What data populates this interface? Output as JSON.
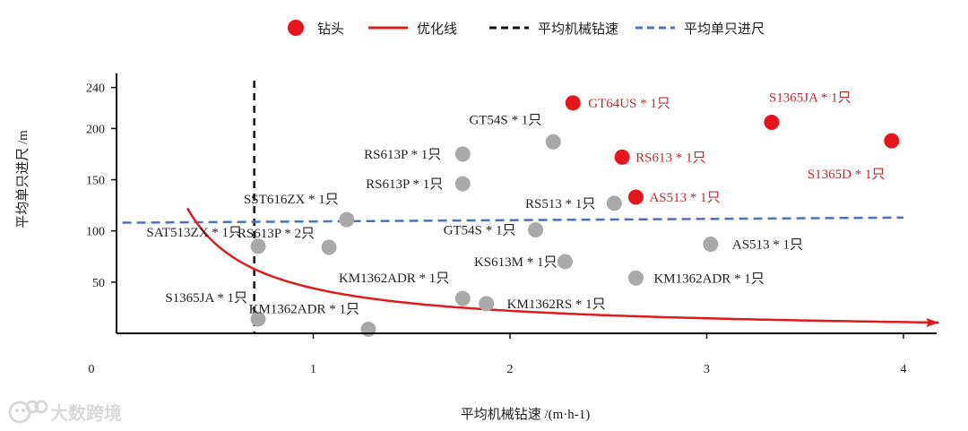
{
  "chart_data": {
    "type": "scatter",
    "xlabel": "平均机械钻速 /(m·h-1)",
    "ylabel": "平均单只进尺 /m",
    "xlim": [
      0,
      4.15
    ],
    "ylim": [
      0,
      245
    ],
    "x_ticks": [
      0,
      1,
      2,
      3,
      4
    ],
    "y_ticks": [
      50,
      100,
      150,
      200,
      240
    ],
    "grid": false,
    "legend_position": "top",
    "legend": [
      {
        "key": "bits",
        "label": "钻头",
        "kind": "dot",
        "color": "#e8141b"
      },
      {
        "key": "opt",
        "label": "优化线",
        "kind": "line",
        "color": "#e01b1b"
      },
      {
        "key": "avg_rop",
        "label": "平均机械钻速",
        "kind": "dash",
        "color": "#111111"
      },
      {
        "key": "avg_footage",
        "label": "平均单只进尺",
        "kind": "dash",
        "color": "#4a72c0"
      }
    ],
    "avg_rop_x": 0.7,
    "avg_footage_line": [
      [
        0.03,
        108
      ],
      [
        4.0,
        113
      ]
    ],
    "optimization_curve_k": 44,
    "optimization_curve_x": [
      0.36,
      4.18
    ],
    "points": [
      {
        "x": 0.72,
        "y": 85,
        "label": "SAT513ZX * 1只",
        "highlight": false
      },
      {
        "x": 0.72,
        "y": 14,
        "label": "S1365JA * 1只",
        "highlight": false
      },
      {
        "x": 1.08,
        "y": 84,
        "label": "RS613P * 2只",
        "highlight": false
      },
      {
        "x": 1.17,
        "y": 111,
        "label": "SST616ZX * 1只",
        "highlight": false
      },
      {
        "x": 1.28,
        "y": 4,
        "label": "KM1362ADR * 1只",
        "highlight": false
      },
      {
        "x": 1.76,
        "y": 175,
        "label": "RS613P * 1只",
        "highlight": false
      },
      {
        "x": 1.76,
        "y": 146,
        "label": "RS613P * 1只",
        "highlight": false
      },
      {
        "x": 1.76,
        "y": 34,
        "label": "KM1362ADR * 1只",
        "highlight": false
      },
      {
        "x": 1.88,
        "y": 29,
        "label": "KM1362RS * 1只",
        "highlight": false
      },
      {
        "x": 2.13,
        "y": 101,
        "label": "GT54S * 1只",
        "highlight": false
      },
      {
        "x": 2.22,
        "y": 187,
        "label": "GT54S * 1只",
        "highlight": false
      },
      {
        "x": 2.28,
        "y": 70,
        "label": "KS613M * 1只",
        "highlight": false
      },
      {
        "x": 2.53,
        "y": 127,
        "label": "RS513 * 1只",
        "highlight": false
      },
      {
        "x": 2.64,
        "y": 54,
        "label": "KM1362ADR * 1只",
        "highlight": false
      },
      {
        "x": 3.02,
        "y": 87,
        "label": "AS513 * 1只",
        "highlight": false
      },
      {
        "x": 2.32,
        "y": 225,
        "label": "GT64US * 1只",
        "highlight": true
      },
      {
        "x": 2.57,
        "y": 172,
        "label": "RS613 * 1只",
        "highlight": true
      },
      {
        "x": 2.64,
        "y": 133,
        "label": "AS513 * 1只",
        "highlight": true
      },
      {
        "x": 3.33,
        "y": 206,
        "label": "S1365JA * 1只",
        "highlight": true
      },
      {
        "x": 3.94,
        "y": 188,
        "label": "S1365D * 1只",
        "highlight": true
      }
    ]
  },
  "colors": {
    "highlight_point": "#e8141b",
    "normal_point": "#a9a9a9",
    "highlight_label": "#c0282d",
    "normal_label": "#222222",
    "curve": "#e01b1b",
    "avg_rop": "#111111",
    "avg_footage": "#4a72c0"
  },
  "watermark": {
    "text": "大数跨境",
    "icon": "cat-logo-icon"
  }
}
